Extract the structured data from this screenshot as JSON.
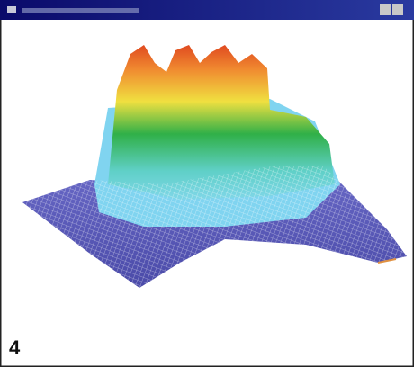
{
  "window": {
    "figure_label": "4"
  }
}
